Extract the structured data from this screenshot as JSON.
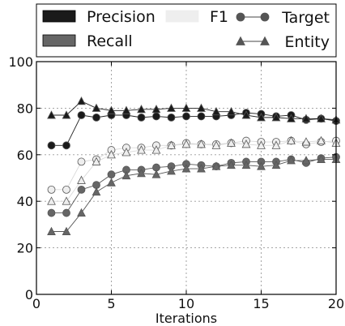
{
  "chart_data": {
    "type": "line",
    "xlabel": "Iterations",
    "ylabel": "",
    "xlim": [
      0,
      20
    ],
    "ylim": [
      0,
      100
    ],
    "xticks": [
      0,
      5,
      10,
      15,
      20
    ],
    "yticks": [
      0,
      20,
      40,
      60,
      80,
      100
    ],
    "grid": true,
    "legend_position": "top",
    "x": [
      1,
      2,
      3,
      4,
      5,
      6,
      7,
      8,
      9,
      10,
      11,
      12,
      13,
      14,
      15,
      16,
      17,
      18,
      19,
      20
    ],
    "metrics": [
      {
        "name": "Precision",
        "color": "#1a1a1a"
      },
      {
        "name": "Recall",
        "color": "#666666"
      },
      {
        "name": "F1",
        "color": "#eeeeee"
      }
    ],
    "series_types": [
      {
        "name": "Target",
        "marker": "circle"
      },
      {
        "name": "Entity",
        "marker": "triangle"
      }
    ],
    "series": [
      {
        "metric": "Precision",
        "type": "Target",
        "color": "#1a1a1a",
        "values": [
          64,
          64,
          77,
          76,
          77,
          77,
          76,
          76.5,
          76,
          76.5,
          76.5,
          76.5,
          77,
          78,
          77.5,
          76.5,
          77,
          75,
          75.5,
          74.5
        ]
      },
      {
        "metric": "Precision",
        "type": "Entity",
        "color": "#1a1a1a",
        "values": [
          77,
          77,
          83,
          80,
          79,
          79,
          79.5,
          79.5,
          80,
          80,
          80,
          78.5,
          78.5,
          77,
          76,
          76,
          75.5,
          75.5,
          75.5,
          75
        ]
      },
      {
        "metric": "Recall",
        "type": "Target",
        "color": "#666666",
        "values": [
          35,
          35,
          45,
          47,
          51.5,
          53.5,
          53.5,
          54.5,
          55,
          56,
          55.5,
          55,
          56.5,
          57,
          57,
          57,
          58,
          56.5,
          58.5,
          59
        ]
      },
      {
        "metric": "Recall",
        "type": "Entity",
        "color": "#666666",
        "values": [
          27,
          27,
          35,
          44,
          48,
          51,
          52,
          51.5,
          53,
          54,
          54,
          55,
          55.5,
          55.5,
          55,
          55.5,
          57.5,
          57.5,
          58,
          58
        ]
      },
      {
        "metric": "F1",
        "type": "Target",
        "color": "#eeeeee",
        "values": [
          45,
          45,
          57,
          58,
          62,
          63,
          63,
          64,
          64,
          65,
          64.5,
          64.5,
          65,
          66,
          65.5,
          65.5,
          66,
          64.5,
          65.5,
          66
        ]
      },
      {
        "metric": "F1",
        "type": "Entity",
        "color": "#eeeeee",
        "values": [
          40,
          40,
          49,
          57,
          60,
          61,
          62,
          62,
          64,
          64.5,
          64.5,
          64,
          65,
          64.5,
          64,
          64,
          66,
          65.5,
          66,
          65
        ]
      }
    ]
  }
}
